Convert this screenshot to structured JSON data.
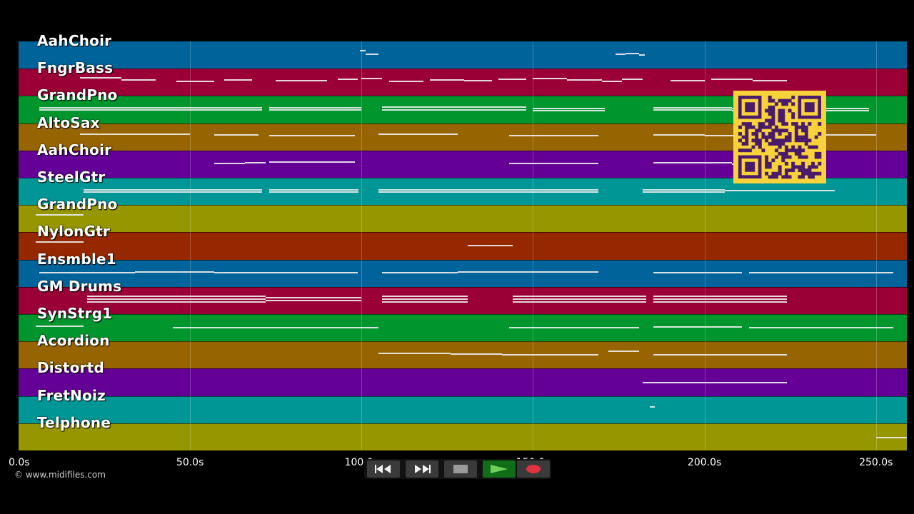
{
  "tracks": [
    {
      "name": "AahChoir",
      "color": "#00649a"
    },
    {
      "name": "FngrBass",
      "color": "#9a0036"
    },
    {
      "name": "GrandPno",
      "color": "#00962d"
    },
    {
      "name": "AltoSax",
      "color": "#966400"
    },
    {
      "name": "AahChoir",
      "color": "#640096"
    },
    {
      "name": "SteelGtr",
      "color": "#009696"
    },
    {
      "name": "GrandPno",
      "color": "#969600"
    },
    {
      "name": "NylonGtr",
      "color": "#962800"
    },
    {
      "name": "Ensmble1",
      "color": "#00649a"
    },
    {
      "name": "GM Drums",
      "color": "#9a0036"
    },
    {
      "name": "SynStrg1",
      "color": "#00962d"
    },
    {
      "name": "Acordion",
      "color": "#966400"
    },
    {
      "name": "Distortd",
      "color": "#640096"
    },
    {
      "name": "FretNoiz",
      "color": "#009696"
    },
    {
      "name": "Telphone",
      "color": "#969600"
    }
  ],
  "timeline": {
    "range_seconds": [
      0,
      259
    ],
    "ticks": [
      {
        "value": 0,
        "label": "0.0s"
      },
      {
        "value": 50,
        "label": "50.0s"
      },
      {
        "value": 100,
        "label": "100.0s"
      },
      {
        "value": 150,
        "label": "150.0s"
      },
      {
        "value": 200,
        "label": "200.0s"
      },
      {
        "value": 250,
        "label": "250.0s"
      }
    ]
  },
  "notes": [
    [
      [
        99.5,
        101.2,
        -5
      ],
      [
        101.2,
        105,
        0
      ],
      [
        174,
        177,
        0
      ],
      [
        177,
        181,
        -1
      ],
      [
        181,
        182.5,
        1
      ]
    ],
    [
      [
        18,
        30,
        -5
      ],
      [
        30,
        40,
        -2
      ],
      [
        46,
        57,
        0
      ],
      [
        60,
        68,
        -2
      ],
      [
        75,
        90,
        -1
      ],
      [
        93,
        99,
        -3
      ],
      [
        100,
        106,
        -4
      ],
      [
        108,
        118,
        0
      ],
      [
        120,
        130,
        -2
      ],
      [
        130,
        138,
        -1
      ],
      [
        140,
        148,
        -3
      ],
      [
        150,
        160,
        -4
      ],
      [
        160,
        170,
        -2
      ],
      [
        170,
        176,
        0
      ],
      [
        176,
        182,
        -3
      ],
      [
        190,
        200,
        -1
      ],
      [
        202,
        214,
        -3
      ],
      [
        214,
        224,
        -1
      ]
    ],
    [
      [
        6,
        71,
        -2
      ],
      [
        6,
        71,
        1
      ],
      [
        73,
        100,
        -2
      ],
      [
        73,
        100,
        1
      ],
      [
        106,
        148,
        -3
      ],
      [
        106,
        148,
        1
      ],
      [
        150,
        171,
        -1
      ],
      [
        150,
        171,
        2
      ],
      [
        185,
        208,
        -2
      ],
      [
        185,
        208,
        1
      ],
      [
        208,
        248,
        -1
      ],
      [
        208,
        248,
        2
      ]
    ],
    [
      [
        18,
        50,
        -3
      ],
      [
        57,
        70,
        -2
      ],
      [
        73,
        98,
        -1
      ],
      [
        105,
        128,
        -3
      ],
      [
        143,
        169,
        -1
      ],
      [
        185,
        200,
        -2
      ],
      [
        200,
        222,
        -1
      ],
      [
        222,
        250,
        -2
      ]
    ],
    [
      [
        57,
        66,
        0
      ],
      [
        66,
        72,
        -1
      ],
      [
        73,
        98,
        -2
      ],
      [
        143,
        169,
        0
      ],
      [
        185,
        208,
        -1
      ],
      [
        208,
        222,
        1
      ]
    ],
    [
      [
        19,
        71,
        -1
      ],
      [
        19,
        71,
        2
      ],
      [
        73,
        99,
        -1
      ],
      [
        73,
        99,
        2
      ],
      [
        105,
        169,
        -1
      ],
      [
        105,
        169,
        2
      ],
      [
        182,
        206,
        -1
      ],
      [
        182,
        206,
        2
      ],
      [
        206,
        238,
        0
      ]
    ],
    [
      [
        5,
        19,
        -4
      ]
    ],
    [
      [
        5,
        19,
        -5
      ],
      [
        131,
        144,
        0
      ]
    ],
    [
      [
        6,
        34,
        0
      ],
      [
        34,
        57,
        -1
      ],
      [
        57,
        99,
        0
      ],
      [
        106,
        128,
        0
      ],
      [
        128,
        169,
        -1
      ],
      [
        185,
        211,
        0
      ],
      [
        213,
        255,
        0
      ]
    ],
    [
      [
        20,
        72,
        -5
      ],
      [
        20,
        72,
        -1
      ],
      [
        20,
        72,
        3
      ],
      [
        72,
        100,
        -3
      ],
      [
        72,
        100,
        1
      ],
      [
        106,
        131,
        -5
      ],
      [
        106,
        131,
        -1
      ],
      [
        106,
        131,
        3
      ],
      [
        144,
        183,
        -5
      ],
      [
        144,
        183,
        -1
      ],
      [
        144,
        183,
        3
      ],
      [
        185,
        224,
        -5
      ],
      [
        185,
        224,
        -1
      ],
      [
        185,
        224,
        3
      ]
    ],
    [
      [
        5,
        19,
        -1
      ],
      [
        45,
        105,
        1
      ],
      [
        143,
        181,
        1
      ],
      [
        185,
        211,
        0
      ],
      [
        213,
        255,
        1
      ]
    ],
    [
      [
        105,
        126,
        -1
      ],
      [
        126,
        141,
        0
      ],
      [
        141,
        169,
        1
      ],
      [
        172,
        181,
        -4
      ],
      [
        185,
        224,
        1
      ]
    ],
    [
      [
        182,
        224,
        1
      ]
    ],
    [
      [
        184,
        185.5,
        -3
      ]
    ],
    [
      [
        250,
        259,
        2
      ]
    ]
  ],
  "transport": {
    "buttons": [
      {
        "label": "rewind",
        "icon": "rewind-icon",
        "bg": "#3a3a3a"
      },
      {
        "label": "fast-forward",
        "icon": "fast-forward-icon",
        "bg": "#3a3a3a"
      },
      {
        "label": "stop",
        "icon": "stop-icon",
        "bg": "#3a3a3a"
      },
      {
        "label": "play",
        "icon": "play-icon",
        "bg": "#0f6e17"
      },
      {
        "label": "record",
        "icon": "record-icon",
        "bg": "#3a3a3a"
      }
    ]
  },
  "copyright": "© www.midifiles.com",
  "qr_color": "#4a1a6b"
}
